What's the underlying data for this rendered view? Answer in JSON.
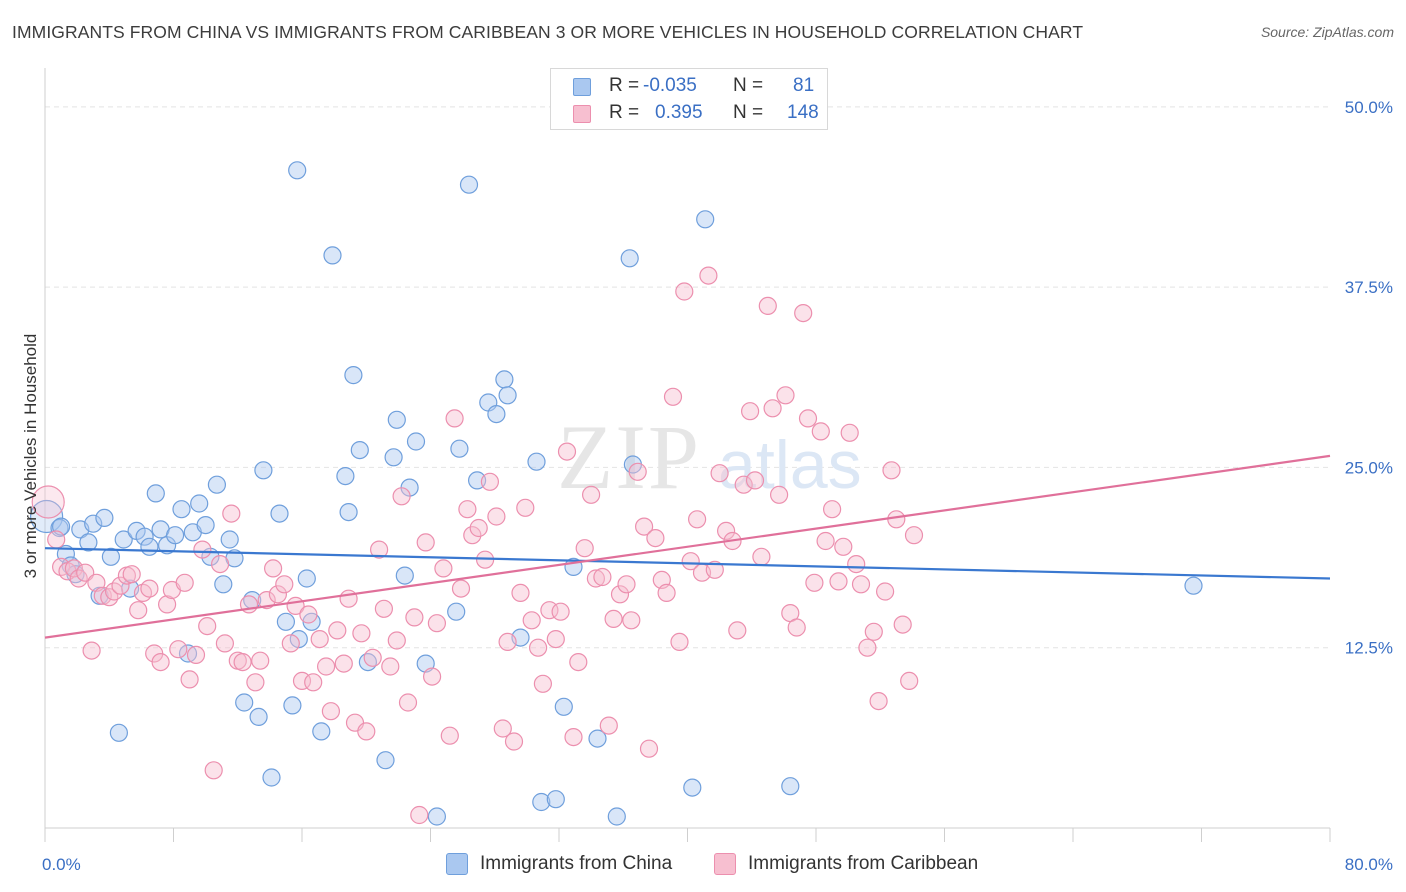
{
  "header": {
    "title": "IMMIGRANTS FROM CHINA VS IMMIGRANTS FROM CARIBBEAN 3 OR MORE VEHICLES IN HOUSEHOLD CORRELATION CHART",
    "source": "Source: ZipAtlas.com"
  },
  "watermark": {
    "zip": "ZIP",
    "atlas": "atlas"
  },
  "legend_top": {
    "rows": [
      {
        "r_label": "R =",
        "r_value": "-0.035",
        "n_label": "N =",
        "n_value": "81"
      },
      {
        "r_label": "R =",
        "r_value": "0.395",
        "n_label": "N =",
        "n_value": "148"
      }
    ]
  },
  "legend_bottom": {
    "items": [
      {
        "label": "Immigrants from China"
      },
      {
        "label": "Immigrants from Caribbean"
      }
    ]
  },
  "colors": {
    "china_fill": "#aac8f0",
    "china_stroke": "#6f9fdc",
    "china_line": "#3a78d0",
    "carib_fill": "#f7bfd0",
    "carib_stroke": "#ec8fae",
    "carib_line": "#e0709a",
    "axis_label": "#3a6fc4",
    "grid": "#e4e4e4"
  },
  "chart_data": {
    "type": "scatter",
    "title": "IMMIGRANTS FROM CHINA VS IMMIGRANTS FROM CARIBBEAN 3 OR MORE VEHICLES IN HOUSEHOLD CORRELATION CHART",
    "xlabel": "",
    "ylabel": "3 or more Vehicles in Household",
    "xlim": [
      0,
      80
    ],
    "ylim": [
      0,
      52
    ],
    "x_tick_labels": [
      "0.0%",
      "80.0%"
    ],
    "y_ticks": [
      12.5,
      25.0,
      37.5,
      50.0
    ],
    "y_tick_labels": [
      "12.5%",
      "25.0%",
      "37.5%",
      "50.0%"
    ],
    "series": [
      {
        "name": "Immigrants from China",
        "R": -0.035,
        "N": 81,
        "trend": [
          [
            0,
            19.4
          ],
          [
            80,
            17.3
          ]
        ],
        "points": [
          [
            0.1,
            21.6
          ],
          [
            0.9,
            20.8
          ],
          [
            1.3,
            19.0
          ],
          [
            1.6,
            18.2
          ],
          [
            2.2,
            20.7
          ],
          [
            2.7,
            19.8
          ],
          [
            3.0,
            21.1
          ],
          [
            3.4,
            16.1
          ],
          [
            3.7,
            21.5
          ],
          [
            4.1,
            18.8
          ],
          [
            4.6,
            6.6
          ],
          [
            4.9,
            20.0
          ],
          [
            5.3,
            16.6
          ],
          [
            5.7,
            20.6
          ],
          [
            6.2,
            20.2
          ],
          [
            6.5,
            19.5
          ],
          [
            6.9,
            23.2
          ],
          [
            7.2,
            20.7
          ],
          [
            7.6,
            19.6
          ],
          [
            8.1,
            20.3
          ],
          [
            8.5,
            22.1
          ],
          [
            8.9,
            12.1
          ],
          [
            9.2,
            20.5
          ],
          [
            9.6,
            22.5
          ],
          [
            10.0,
            21.0
          ],
          [
            10.3,
            18.8
          ],
          [
            10.7,
            23.8
          ],
          [
            11.1,
            16.9
          ],
          [
            11.5,
            20.0
          ],
          [
            11.8,
            18.7
          ],
          [
            12.4,
            8.7
          ],
          [
            12.9,
            15.8
          ],
          [
            13.3,
            7.7
          ],
          [
            13.6,
            24.8
          ],
          [
            14.1,
            3.5
          ],
          [
            14.6,
            21.8
          ],
          [
            15.0,
            14.3
          ],
          [
            15.4,
            8.5
          ],
          [
            15.8,
            13.1
          ],
          [
            15.7,
            45.6
          ],
          [
            16.3,
            17.3
          ],
          [
            16.6,
            14.3
          ],
          [
            17.2,
            6.7
          ],
          [
            17.9,
            39.7
          ],
          [
            18.7,
            24.4
          ],
          [
            18.9,
            21.9
          ],
          [
            19.2,
            31.4
          ],
          [
            19.6,
            26.2
          ],
          [
            20.1,
            11.5
          ],
          [
            21.2,
            4.7
          ],
          [
            21.7,
            25.7
          ],
          [
            21.9,
            28.3
          ],
          [
            22.4,
            17.5
          ],
          [
            22.7,
            23.6
          ],
          [
            23.1,
            26.8
          ],
          [
            23.7,
            11.4
          ],
          [
            24.4,
            0.8
          ],
          [
            25.6,
            15.0
          ],
          [
            25.8,
            26.3
          ],
          [
            26.4,
            44.6
          ],
          [
            26.9,
            24.1
          ],
          [
            27.6,
            29.5
          ],
          [
            28.1,
            28.7
          ],
          [
            28.6,
            31.1
          ],
          [
            28.8,
            30.0
          ],
          [
            29.6,
            13.2
          ],
          [
            30.6,
            25.4
          ],
          [
            30.9,
            1.8
          ],
          [
            31.8,
            2.0
          ],
          [
            32.3,
            8.4
          ],
          [
            32.9,
            18.1
          ],
          [
            34.4,
            6.2
          ],
          [
            35.6,
            0.8
          ],
          [
            36.4,
            39.5
          ],
          [
            36.6,
            25.2
          ],
          [
            40.3,
            2.8
          ],
          [
            41.1,
            42.2
          ],
          [
            46.4,
            2.9
          ],
          [
            71.5,
            16.8
          ],
          [
            1.0,
            20.9
          ],
          [
            1.9,
            17.6
          ]
        ]
      },
      {
        "name": "Immigrants from Caribbean",
        "R": 0.395,
        "N": 148,
        "trend": [
          [
            0,
            13.2
          ],
          [
            80,
            25.8
          ]
        ],
        "points": [
          [
            0.2,
            22.6
          ],
          [
            0.7,
            20.0
          ],
          [
            1.0,
            18.1
          ],
          [
            1.4,
            17.8
          ],
          [
            1.8,
            18.0
          ],
          [
            2.1,
            17.3
          ],
          [
            2.5,
            17.7
          ],
          [
            2.9,
            12.3
          ],
          [
            3.2,
            17.0
          ],
          [
            3.6,
            16.1
          ],
          [
            4.0,
            16.0
          ],
          [
            4.3,
            16.4
          ],
          [
            4.7,
            16.8
          ],
          [
            5.1,
            17.5
          ],
          [
            5.4,
            17.6
          ],
          [
            5.8,
            15.1
          ],
          [
            6.1,
            16.3
          ],
          [
            6.5,
            16.6
          ],
          [
            6.8,
            12.1
          ],
          [
            7.2,
            11.5
          ],
          [
            7.6,
            15.5
          ],
          [
            7.9,
            16.5
          ],
          [
            8.3,
            12.4
          ],
          [
            8.7,
            17.0
          ],
          [
            9.0,
            10.3
          ],
          [
            9.4,
            12.0
          ],
          [
            9.8,
            19.3
          ],
          [
            10.1,
            14.0
          ],
          [
            10.5,
            4.0
          ],
          [
            10.9,
            18.3
          ],
          [
            11.2,
            12.8
          ],
          [
            11.6,
            21.8
          ],
          [
            12.0,
            11.6
          ],
          [
            12.3,
            11.5
          ],
          [
            12.7,
            15.5
          ],
          [
            13.1,
            10.1
          ],
          [
            13.4,
            11.6
          ],
          [
            13.8,
            15.8
          ],
          [
            14.2,
            18.0
          ],
          [
            14.5,
            16.2
          ],
          [
            14.9,
            16.9
          ],
          [
            15.3,
            12.8
          ],
          [
            15.6,
            15.4
          ],
          [
            16.0,
            10.2
          ],
          [
            16.4,
            14.8
          ],
          [
            16.7,
            10.1
          ],
          [
            17.1,
            13.1
          ],
          [
            17.5,
            11.2
          ],
          [
            17.8,
            8.1
          ],
          [
            18.2,
            13.7
          ],
          [
            18.6,
            11.4
          ],
          [
            18.9,
            15.9
          ],
          [
            19.3,
            7.3
          ],
          [
            19.7,
            13.5
          ],
          [
            20.0,
            6.7
          ],
          [
            20.4,
            11.8
          ],
          [
            20.8,
            19.3
          ],
          [
            21.1,
            15.2
          ],
          [
            21.5,
            11.2
          ],
          [
            21.9,
            13.0
          ],
          [
            22.2,
            23.0
          ],
          [
            22.6,
            8.7
          ],
          [
            23.0,
            14.6
          ],
          [
            23.3,
            0.9
          ],
          [
            23.7,
            19.8
          ],
          [
            24.1,
            10.5
          ],
          [
            24.4,
            14.2
          ],
          [
            24.8,
            18.0
          ],
          [
            25.2,
            6.4
          ],
          [
            25.5,
            28.4
          ],
          [
            25.9,
            16.6
          ],
          [
            26.3,
            22.1
          ],
          [
            26.6,
            20.3
          ],
          [
            27.0,
            20.8
          ],
          [
            27.4,
            18.6
          ],
          [
            27.7,
            24.0
          ],
          [
            28.1,
            21.6
          ],
          [
            28.5,
            6.9
          ],
          [
            28.8,
            12.9
          ],
          [
            29.2,
            6.0
          ],
          [
            29.6,
            16.3
          ],
          [
            29.9,
            22.2
          ],
          [
            30.3,
            14.4
          ],
          [
            30.7,
            12.5
          ],
          [
            31.0,
            10.0
          ],
          [
            31.4,
            15.1
          ],
          [
            31.8,
            13.1
          ],
          [
            32.1,
            15.0
          ],
          [
            32.5,
            26.1
          ],
          [
            32.9,
            6.3
          ],
          [
            33.2,
            11.5
          ],
          [
            33.6,
            19.4
          ],
          [
            34.0,
            23.1
          ],
          [
            34.3,
            17.3
          ],
          [
            34.7,
            17.4
          ],
          [
            35.1,
            7.1
          ],
          [
            35.4,
            14.5
          ],
          [
            35.8,
            16.2
          ],
          [
            36.2,
            16.9
          ],
          [
            36.5,
            14.4
          ],
          [
            36.9,
            24.7
          ],
          [
            37.3,
            20.9
          ],
          [
            37.6,
            5.5
          ],
          [
            38.0,
            20.1
          ],
          [
            38.4,
            17.2
          ],
          [
            38.7,
            16.3
          ],
          [
            39.1,
            29.9
          ],
          [
            39.5,
            12.9
          ],
          [
            39.8,
            37.2
          ],
          [
            40.2,
            18.5
          ],
          [
            40.6,
            21.4
          ],
          [
            40.9,
            17.7
          ],
          [
            41.3,
            38.3
          ],
          [
            41.7,
            17.9
          ],
          [
            42.0,
            24.6
          ],
          [
            42.4,
            20.6
          ],
          [
            42.8,
            19.9
          ],
          [
            43.1,
            13.7
          ],
          [
            43.5,
            23.8
          ],
          [
            43.9,
            28.9
          ],
          [
            44.2,
            24.1
          ],
          [
            44.6,
            18.8
          ],
          [
            45.0,
            36.2
          ],
          [
            45.3,
            29.1
          ],
          [
            45.7,
            23.1
          ],
          [
            46.1,
            30.0
          ],
          [
            46.4,
            14.9
          ],
          [
            46.8,
            13.9
          ],
          [
            47.2,
            35.7
          ],
          [
            47.5,
            28.4
          ],
          [
            47.9,
            17.0
          ],
          [
            48.3,
            27.5
          ],
          [
            48.6,
            19.9
          ],
          [
            49.0,
            22.1
          ],
          [
            49.4,
            17.1
          ],
          [
            49.7,
            19.5
          ],
          [
            50.1,
            27.4
          ],
          [
            50.5,
            18.3
          ],
          [
            50.8,
            16.9
          ],
          [
            51.2,
            12.5
          ],
          [
            51.6,
            13.6
          ],
          [
            51.9,
            8.8
          ],
          [
            52.3,
            16.4
          ],
          [
            52.7,
            24.8
          ],
          [
            53.0,
            21.4
          ],
          [
            53.4,
            14.1
          ],
          [
            53.8,
            10.2
          ],
          [
            54.1,
            20.3
          ]
        ]
      }
    ]
  }
}
